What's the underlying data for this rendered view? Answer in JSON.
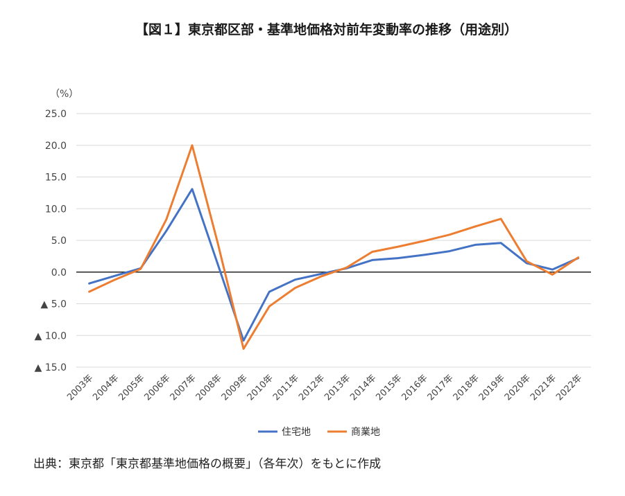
{
  "title": "【図１】東京都区部・基準地価格対前年変動率の推移（用途別）",
  "source": "出典：東京都「東京都基準地価格の概要」（各年次）をもとに作成",
  "chart_data": {
    "type": "line",
    "y_unit": "（%）",
    "ylim": [
      -15,
      25
    ],
    "y_tick_labels": [
      {
        "value": 25,
        "label": "25.0"
      },
      {
        "value": 20,
        "label": "20.0"
      },
      {
        "value": 15,
        "label": "15.0"
      },
      {
        "value": 10,
        "label": "10.0"
      },
      {
        "value": 5,
        "label": "5.0"
      },
      {
        "value": 0,
        "label": "0.0"
      },
      {
        "value": -5,
        "label": "▲ 5.0"
      },
      {
        "value": -10,
        "label": "▲ 10.0"
      },
      {
        "value": -15,
        "label": "▲ 15.0"
      }
    ],
    "grid": true,
    "legend_position": "bottom",
    "categories": [
      "2003年",
      "2004年",
      "2005年",
      "2006年",
      "2007年",
      "2008年",
      "2009年",
      "2010年",
      "2011年",
      "2012年",
      "2013年",
      "2014年",
      "2015年",
      "2016年",
      "2017年",
      "2018年",
      "2019年",
      "2020年",
      "2021年",
      "2022年"
    ],
    "series": [
      {
        "name": "住宅地",
        "color": "#4472C4",
        "values": [
          -1.8,
          -0.6,
          0.6,
          6.5,
          13.1,
          1.2,
          -10.8,
          -3.1,
          -1.2,
          -0.3,
          0.6,
          1.9,
          2.2,
          2.7,
          3.3,
          4.3,
          4.6,
          1.4,
          0.4,
          2.2
        ]
      },
      {
        "name": "商業地",
        "color": "#ED7D31",
        "values": [
          -3.1,
          -1.2,
          0.5,
          8.3,
          20.0,
          4.5,
          -12.1,
          -5.4,
          -2.5,
          -0.7,
          0.7,
          3.2,
          4.0,
          4.9,
          5.9,
          7.2,
          8.4,
          1.7,
          -0.4,
          2.3
        ]
      }
    ]
  }
}
